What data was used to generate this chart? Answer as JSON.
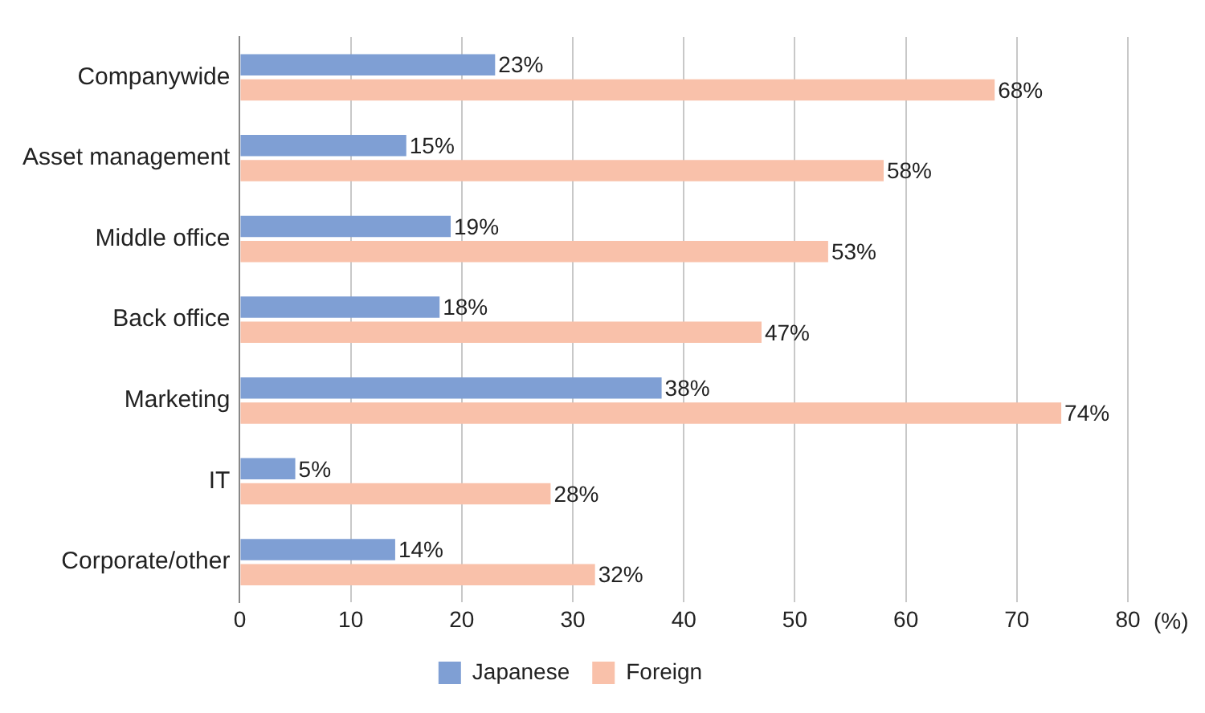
{
  "chart_data": {
    "type": "bar",
    "orientation": "horizontal",
    "xlabel": "(%)",
    "categories": [
      "Companywide",
      "Asset management",
      "Middle office",
      "Back office",
      "Marketing",
      "IT",
      "Corporate/other"
    ],
    "series": [
      {
        "name": "Japanese",
        "color": "#7f9fd4",
        "values": [
          23,
          15,
          19,
          18,
          38,
          5,
          14
        ],
        "value_labels": [
          "23%",
          "15%",
          "19%",
          "18%",
          "38%",
          "5%",
          "14%"
        ]
      },
      {
        "name": "Foreign",
        "color": "#f9c1aa",
        "values": [
          68,
          58,
          53,
          47,
          74,
          28,
          32
        ],
        "value_labels": [
          "68%",
          "58%",
          "53%",
          "47%",
          "74%",
          "28%",
          "32%"
        ]
      }
    ],
    "xlim": [
      0,
      80
    ],
    "xticks": [
      0,
      10,
      20,
      30,
      40,
      50,
      60,
      70,
      80
    ],
    "grid": "x",
    "legend": "bottom"
  }
}
